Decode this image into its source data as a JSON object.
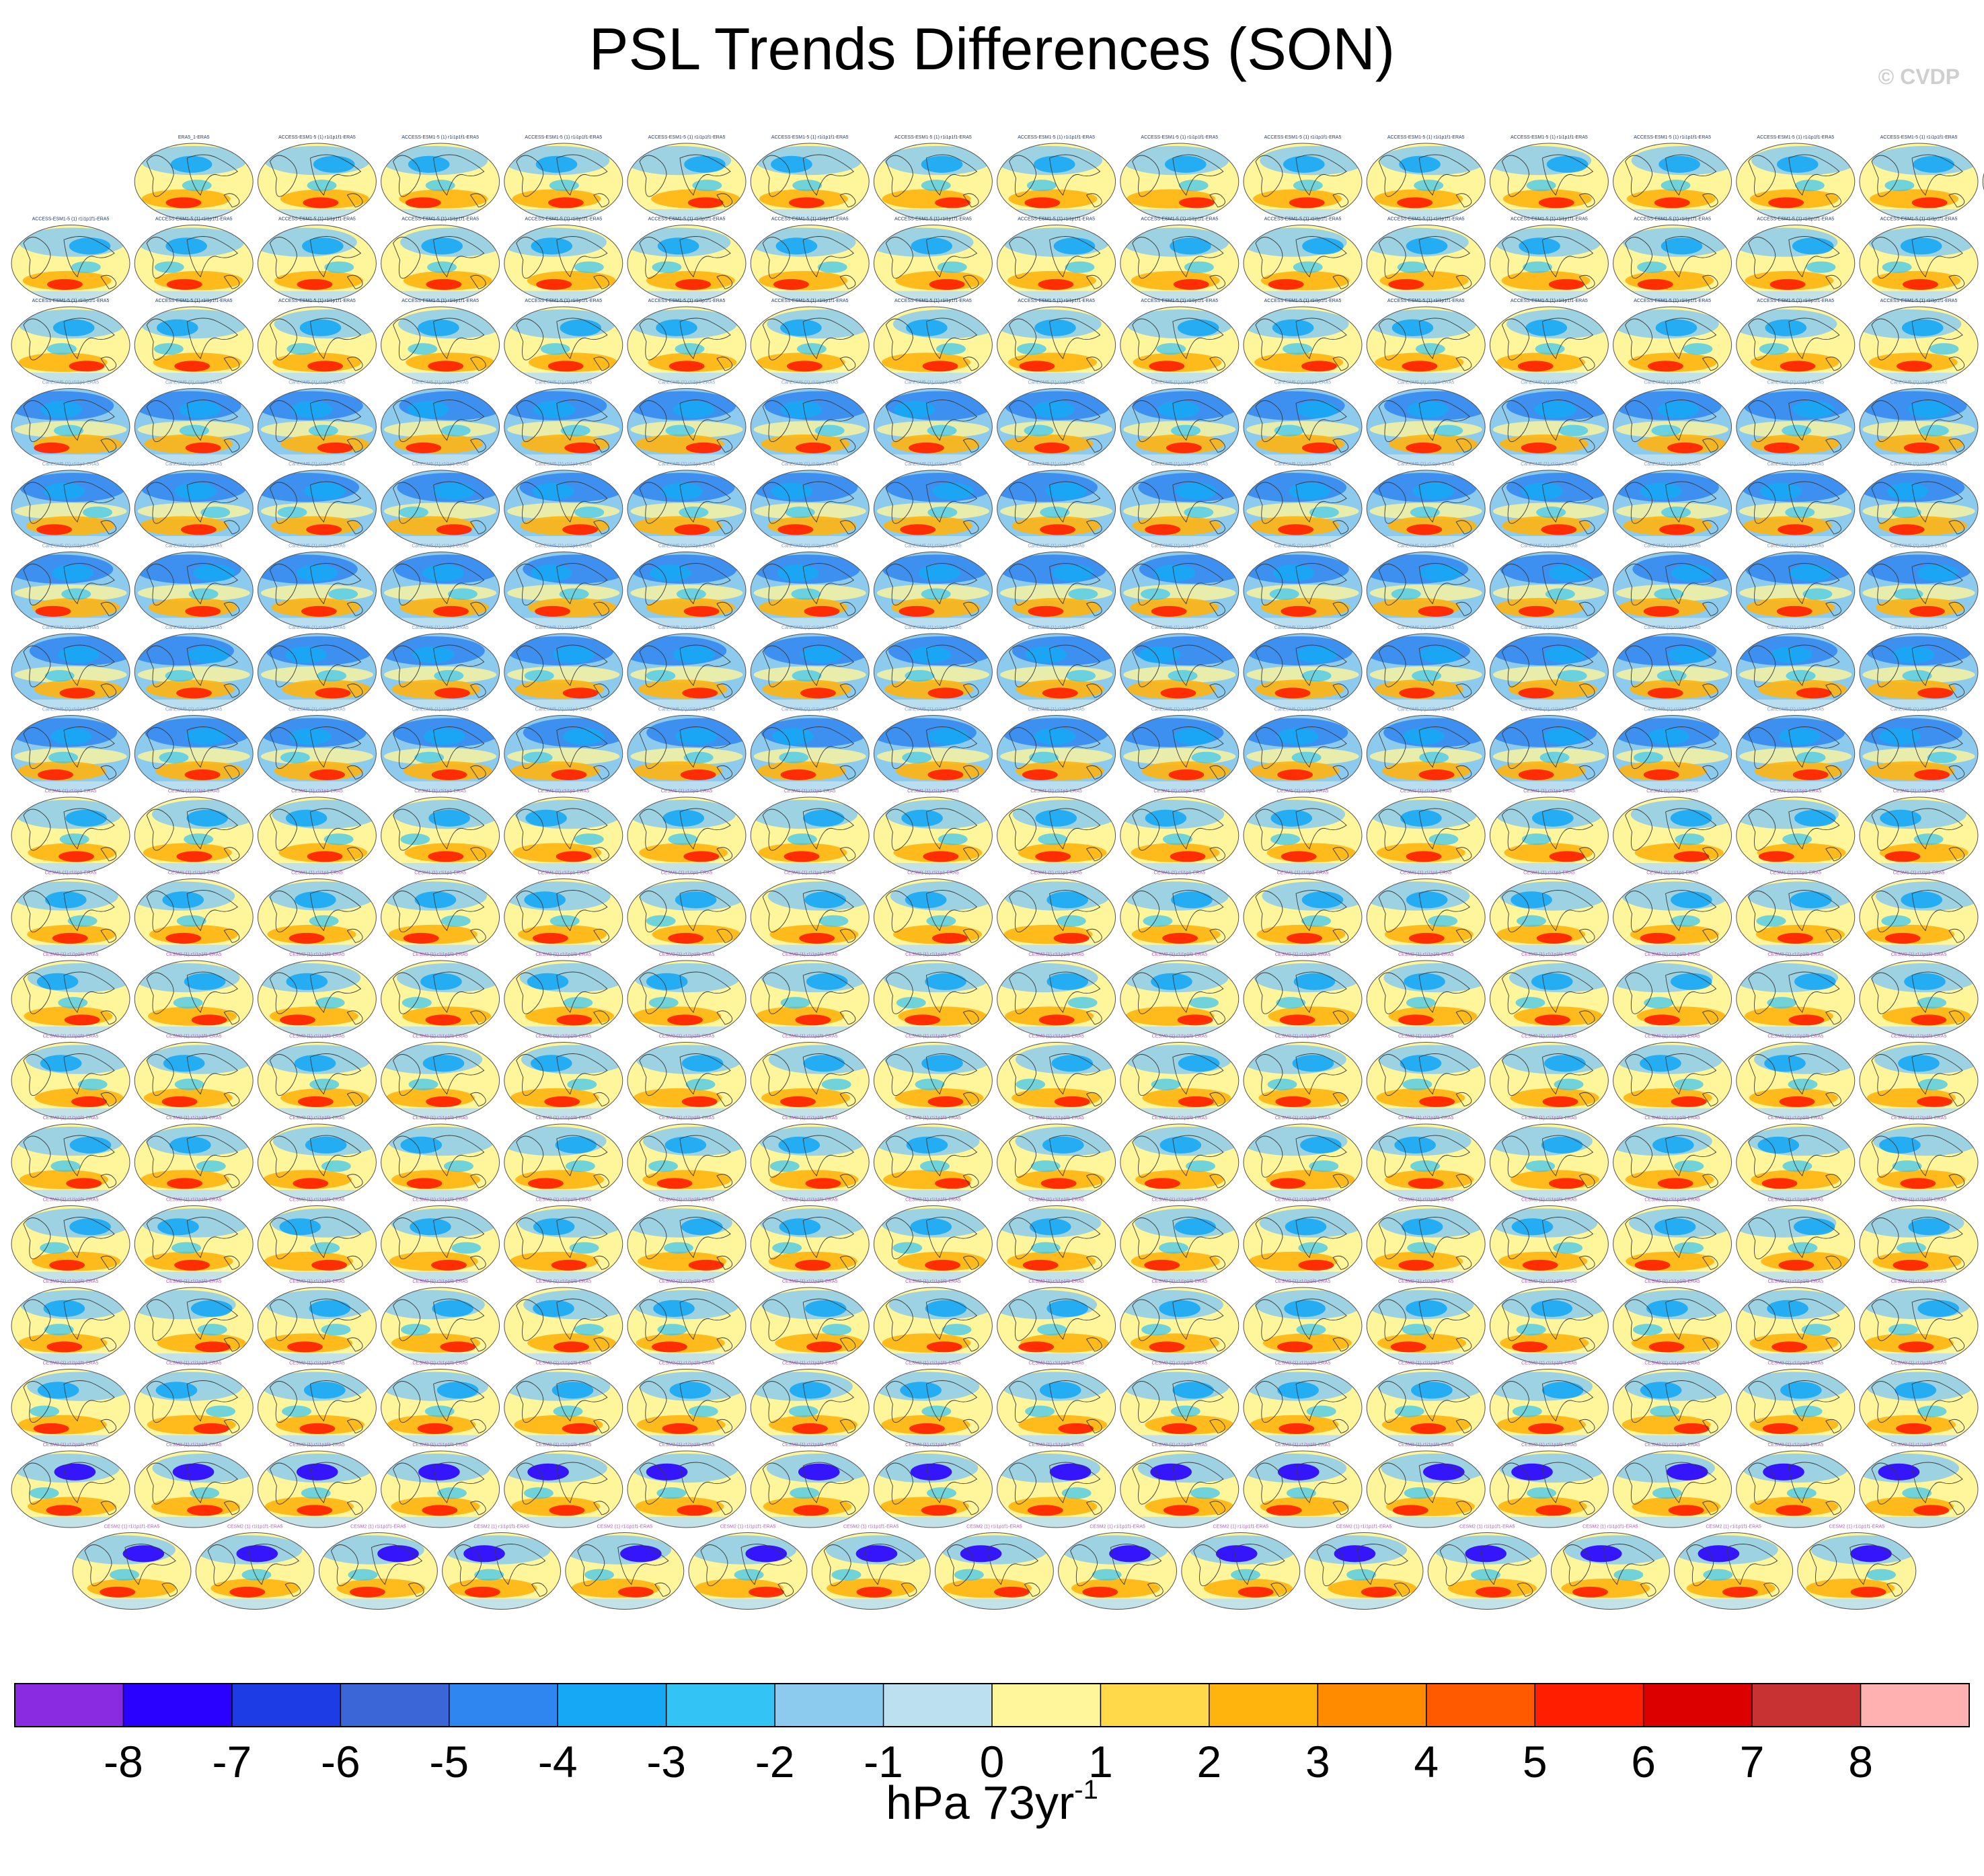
{
  "title": "PSL Trends Differences (SON)",
  "watermark": "© CVDP",
  "chart_data": {
    "type": "heatmap",
    "title": "PSL Trends Differences (SON)",
    "description_kind": "panel grid of global sea level pressure trend difference maps",
    "rows": [
      {
        "row": 1,
        "panels": 16,
        "first_label": "ERA5_1-ERA5",
        "group": "ERA5 / ACCESS-ESM1-5"
      },
      {
        "row": 2,
        "panels": 16,
        "group": "ACCESS-ESM1-5"
      },
      {
        "row": 3,
        "panels": 16,
        "group": "ACCESS-ESM1-5 / CanESM5"
      },
      {
        "row": 4,
        "panels": 16,
        "group": "CanESM5"
      },
      {
        "row": 5,
        "panels": 16,
        "group": "CanESM5"
      },
      {
        "row": 6,
        "panels": 16,
        "group": "CanESM5"
      },
      {
        "row": 7,
        "panels": 16,
        "group": "CanESM5"
      },
      {
        "row": 8,
        "panels": 16,
        "group": "CanESM5 / CESM1"
      },
      {
        "row": 9,
        "panels": 16,
        "group": "CESM1"
      },
      {
        "row": 10,
        "panels": 16,
        "group": "CESM1 / CESM2"
      },
      {
        "row": 11,
        "panels": 16,
        "group": "CESM2"
      },
      {
        "row": 12,
        "panels": 16,
        "group": "CESM2"
      },
      {
        "row": 13,
        "panels": 16,
        "group": "CESM2"
      },
      {
        "row": 14,
        "panels": 16,
        "group": "CESM2"
      },
      {
        "row": 15,
        "panels": 16,
        "group": "CESM2"
      },
      {
        "row": 16,
        "panels": 16,
        "group": "CESM2"
      },
      {
        "row": 17,
        "panels": 16,
        "group": "CESM2"
      },
      {
        "row": 18,
        "panels": 15,
        "group": "CESM2"
      }
    ],
    "panel_sample_labels": [
      "ERA5_1-ERA5",
      "ACCESS-ESM1-5 (1) r1i1p1f1-ERA5",
      "CanESM5 (1) r1i1p1-ERA5",
      "CESM1 (1) r1i1p1-ERA5",
      "CESM2 (1) r1i1p1f1-ERA5"
    ],
    "colorbar": {
      "levels": [
        -8,
        -7,
        -6,
        -5,
        -4,
        -3,
        -2,
        -1,
        0,
        1,
        2,
        3,
        4,
        5,
        6,
        7,
        8
      ],
      "tick_labels": [
        "-8",
        "-7",
        "-6",
        "-5",
        "-4",
        "-3",
        "-2",
        "-1",
        "0",
        "1",
        "2",
        "3",
        "4",
        "5",
        "6",
        "7",
        "8"
      ],
      "colors": [
        "#8a2be2",
        "#2a00ff",
        "#1e3ce6",
        "#3a66d8",
        "#2f86f0",
        "#17a8f5",
        "#33c4f5",
        "#8ccbee",
        "#bde0f0",
        "#fff59a",
        "#ffd94a",
        "#ffb40d",
        "#ff8c00",
        "#ff5a00",
        "#ff1e00",
        "#dc0000",
        "#c83232",
        "#ffb0b0"
      ],
      "units_main": "hPa 73yr",
      "units_sup": "-1"
    }
  }
}
